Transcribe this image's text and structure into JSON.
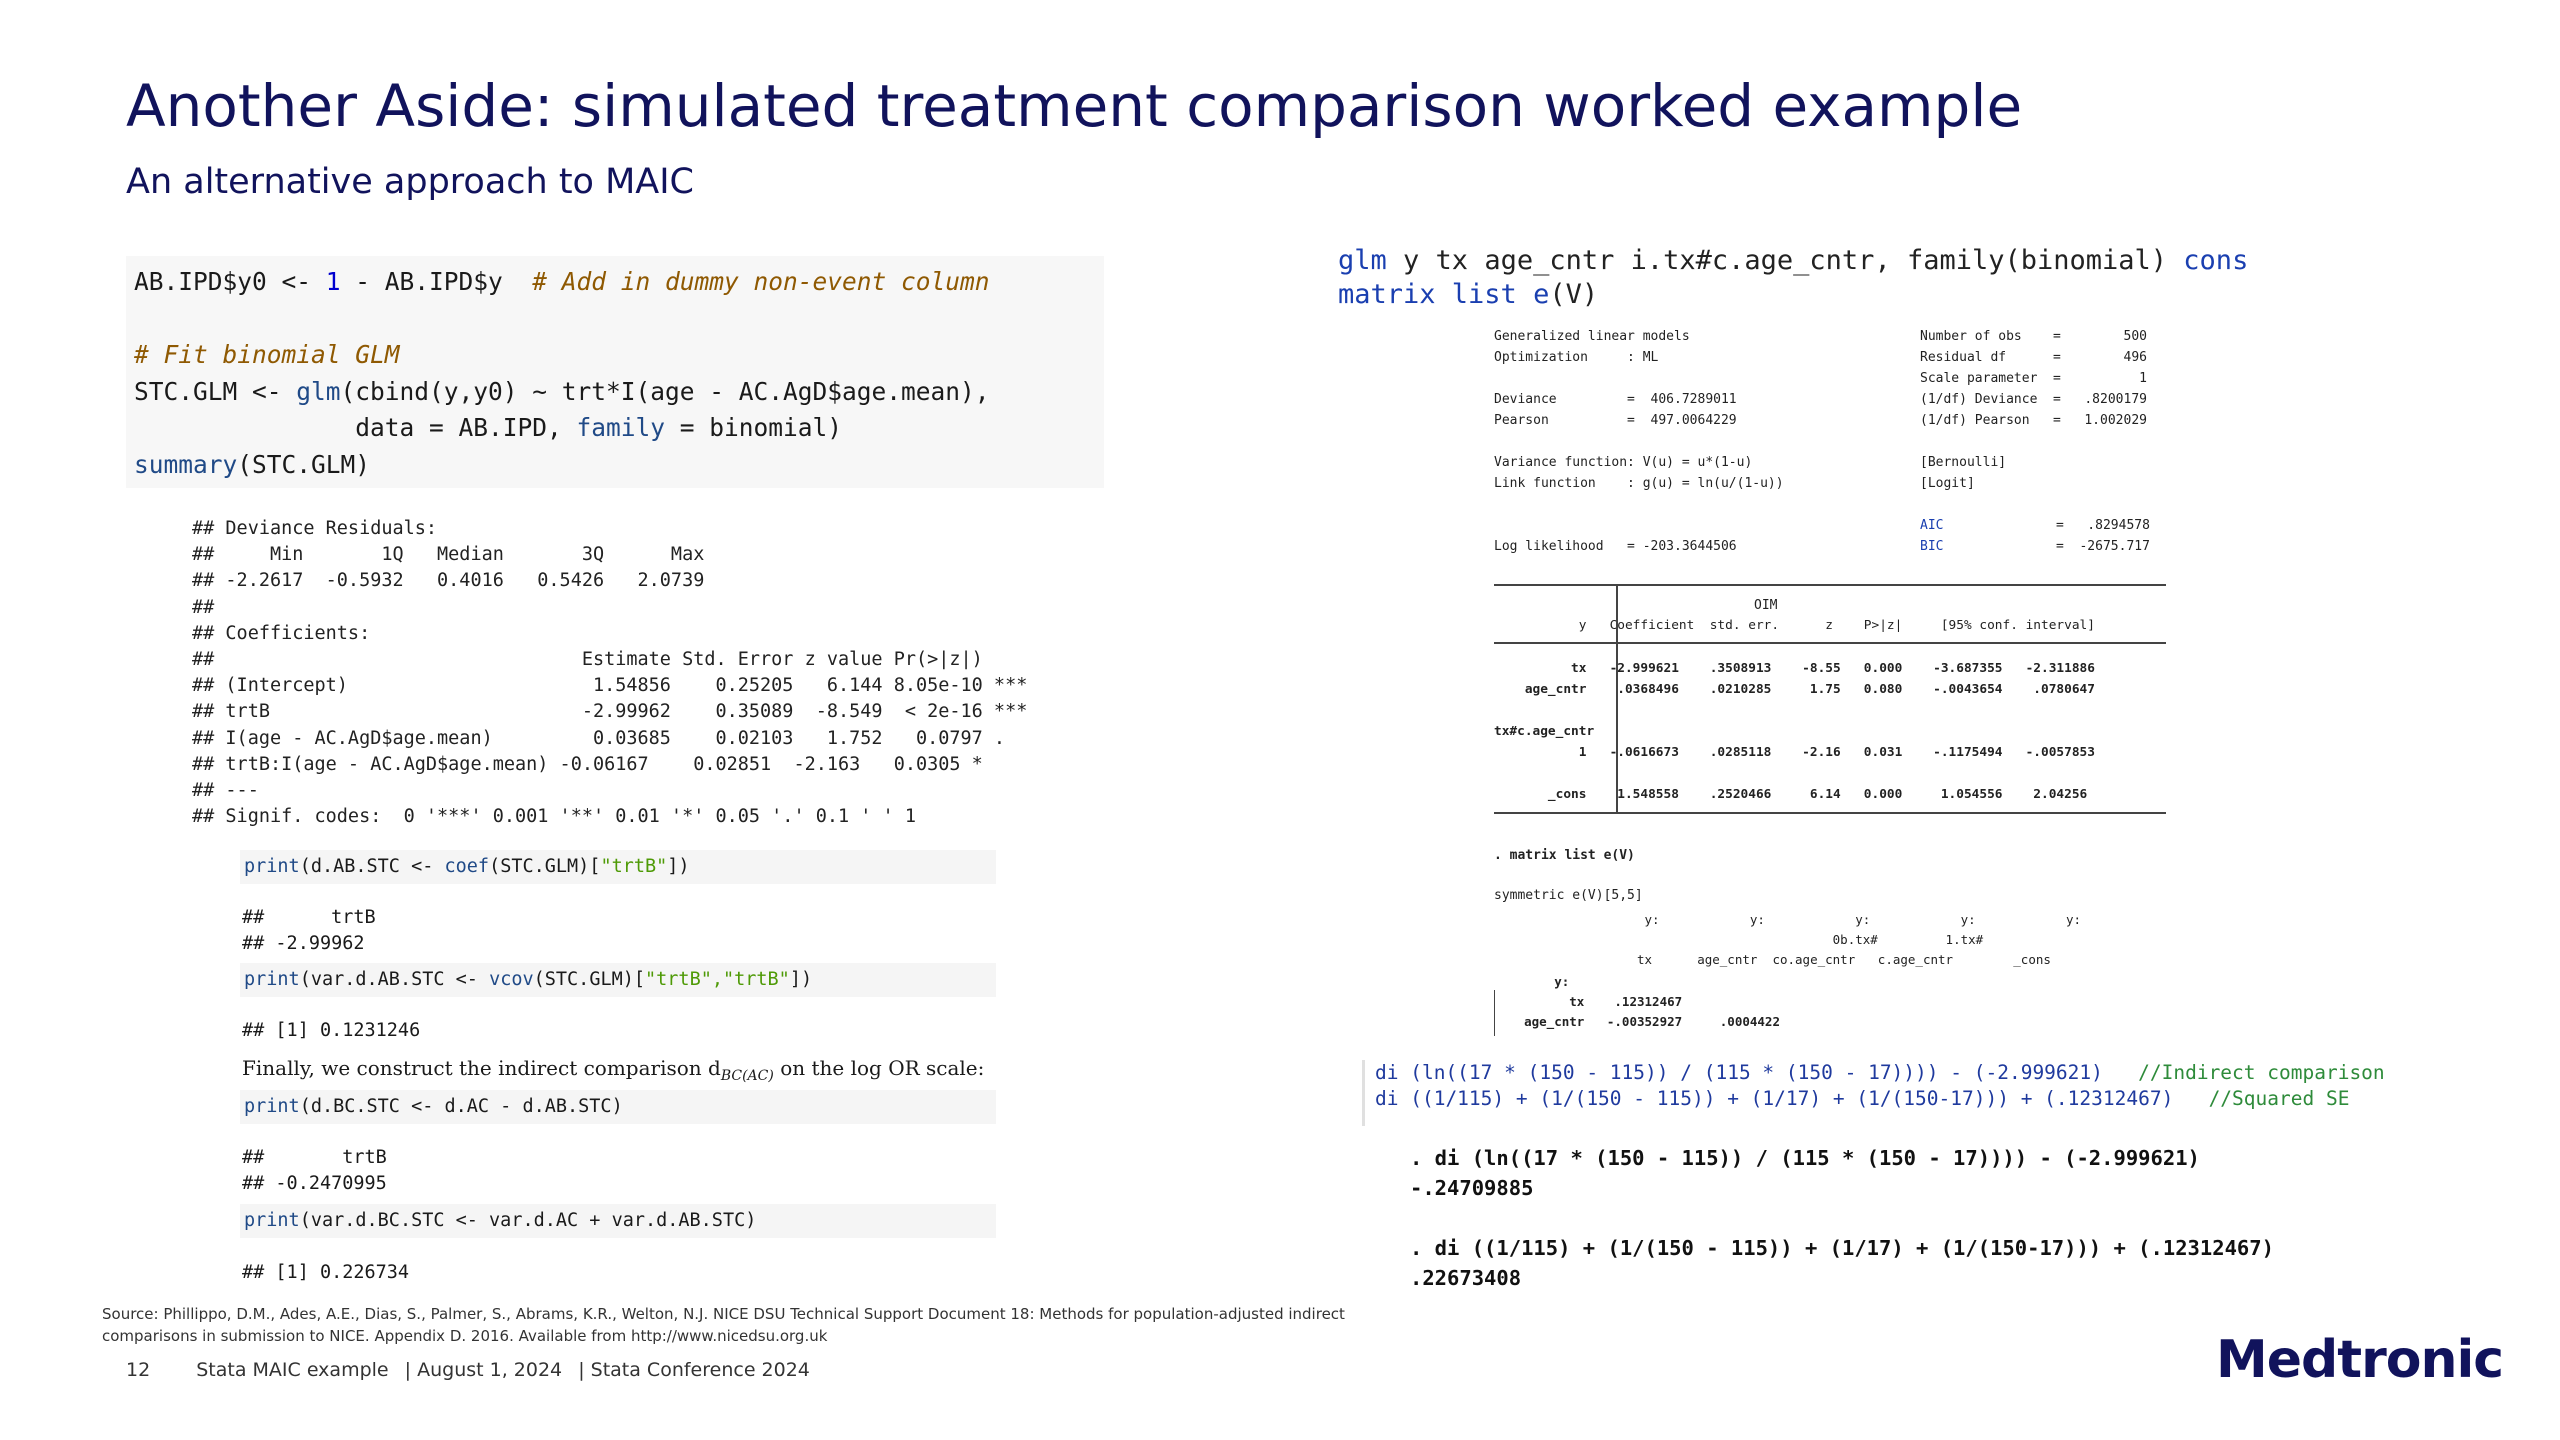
{
  "slide": {
    "title": "Another Aside: simulated treatment comparison worked example",
    "subtitle": "An alternative approach to MAIC",
    "source_line1": "Source: Phillippo, D.M., Ades, A.E., Dias, S., Palmer, S., Abrams, K.R., Welton, N.J. NICE DSU Technical Support Document 18: Methods for population-adjusted indirect",
    "source_line2": "comparisons in submission to NICE. Appendix D. 2016. Available from http://www.nicedsu.org.uk",
    "footer_page": "12",
    "footer_title": "Stata MAIC example",
    "footer_date": "|  August 1, 2024",
    "footer_conf": "|  Stata Conference 2024",
    "logo_text": "Medtronic",
    "brand_color": "#11135c"
  },
  "r_panel": {
    "code_line1_a": "AB.IPD$y0 <- ",
    "code_line1_num": "1",
    "code_line1_b": " - AB.IPD$y  ",
    "code_line1_comment": "# Add in dummy non-event column",
    "code_line3_comment": "# Fit binomial GLM",
    "code_line4_a": "STC.GLM <- ",
    "code_line4_fn": "glm",
    "code_line4_b": "(cbind(y,y0) ~ trt*I(age - AC.AgD$age.mean),",
    "code_line5_a": "               data = AB.IPD, ",
    "code_line5_fn": "family",
    "code_line5_b": " = binomial)",
    "code_line6_fn": "summary",
    "code_line6_b": "(STC.GLM)",
    "output_summary": "## Deviance Residuals:\n##     Min       1Q   Median       3Q      Max\n## -2.2617  -0.5932   0.4016   0.5426   2.0739\n##\n## Coefficients:\n##                                 Estimate Std. Error z value Pr(>|z|)\n## (Intercept)                      1.54856    0.25205   6.144 8.05e-10 ***\n## trtB                            -2.99962    0.35089  -8.549  < 2e-16 ***\n## I(age - AC.AgD$age.mean)         0.03685    0.02103   1.752   0.0797 .\n## trtB:I(age - AC.AgD$age.mean) -0.06167    0.02851  -2.163   0.0305 *\n## ---\n## Signif. codes:  0 '***' 0.001 '**' 0.01 '*' 0.05 '.' 0.1 ' ' 1",
    "box1_fn": "print",
    "box1_a": "(d.AB.STC <- ",
    "box1_fn2": "coef",
    "box1_b": "(STC.GLM)[",
    "box1_str": "\"trtB\"",
    "box1_c": "])",
    "out1": "##      trtB\n## -2.99962",
    "box2_fn": "print",
    "box2_a": "(var.d.AB.STC <- ",
    "box2_fn2": "vcov",
    "box2_b": "(STC.GLM)[",
    "box2_str": "\"trtB\",\"trtB\"",
    "box2_c": "])",
    "out2": "## [1] 0.1231246",
    "finally_text": "Finally, we construct the indirect comparison d",
    "finally_sub": "BC(AC)",
    "finally_end": " on the log OR scale:",
    "box3_fn": "print",
    "box3_b": "(d.BC.STC <- d.AC - d.AB.STC)",
    "out3": "##       trtB\n## -0.2470995",
    "box4_fn": "print",
    "box4_b": "(var.d.BC.STC <- var.d.AC + var.d.AB.STC)",
    "out4": "## [1] 0.226734"
  },
  "stata_panel": {
    "cmd1_kw": "glm",
    "cmd1_rest": " y tx age_cntr i.tx#c.age_cntr, family(binomial) ",
    "cmd1_kw2": "cons",
    "cmd2_kw": "matrix list ",
    "cmd2_kw2": "e",
    "cmd2_rest": "(V)",
    "glm_header_left": "Generalized linear models\nOptimization     : ML\n\nDeviance         =  406.7289011\nPearson          =  497.0064229\n\nVariance function: V(u) = u*(1-u)\nLink function    : g(u) = ln(u/(1-u))\n\n\nLog likelihood   = -203.3644506",
    "glm_header_right": "Number of obs    =        500\nResidual df      =        496\nScale parameter  =          1\n(1/df) Deviance  =   .8200179\n(1/df) Pearson   =   1.002029\n\n[Bernoulli]\n[Logit]",
    "aic_label": "AIC\nBIC",
    "aic_vals": "=   .8294578\n=  -2675.717",
    "table_header_oim": "OIM",
    "table_header": "           y   Coefficient  std. err.      z    P>|z|     [95% conf. interval]",
    "table_body": "          tx   -2.999621    .3508913    -8.55   0.000    -3.687355   -2.311886\n    age_cntr    .0368496    .0210285     1.75   0.080    -.0043654    .0780647\n\ntx#c.age_cntr\n           1   -.0616673    .0285118    -2.16   0.031    -.1175494   -.0057853\n\n       _cons    1.548558    .2520466     6.14   0.000     1.054556    2.04256",
    "matrix_cmd": ". matrix list e(V)",
    "matrix_sym": "symmetric e(V)[5,5]",
    "matrix_header": "                    y:            y:            y:            y:            y:\n                                             0b.tx#         1.tx#\n                   tx      age_cntr  co.age_cntr   c.age_cntr        _cons",
    "matrix_rows": "        y:\n          tx    .12312467\n    age_cntr   -.00352927     .0004422",
    "di_line1_cmd": "di (ln((17 * (150 - 115)) / (115 * (150 - 17)))) - (-2.999621)",
    "di_line1_comment": "//Indirect comparison",
    "di_line2_cmd": "di ((1/115) + (1/(150 - 115)) + (1/17) + (1/(150-17))) + (.12312467)",
    "di_line2_comment": "//Squared SE",
    "di_output": ". di (ln((17 * (150 - 115)) / (115 * (150 - 17)))) - (-2.999621)\n-.24709885\n\n. di ((1/115) + (1/(150 - 115)) + (1/17) + (1/(150-17))) + (.12312467)\n.22673408"
  }
}
